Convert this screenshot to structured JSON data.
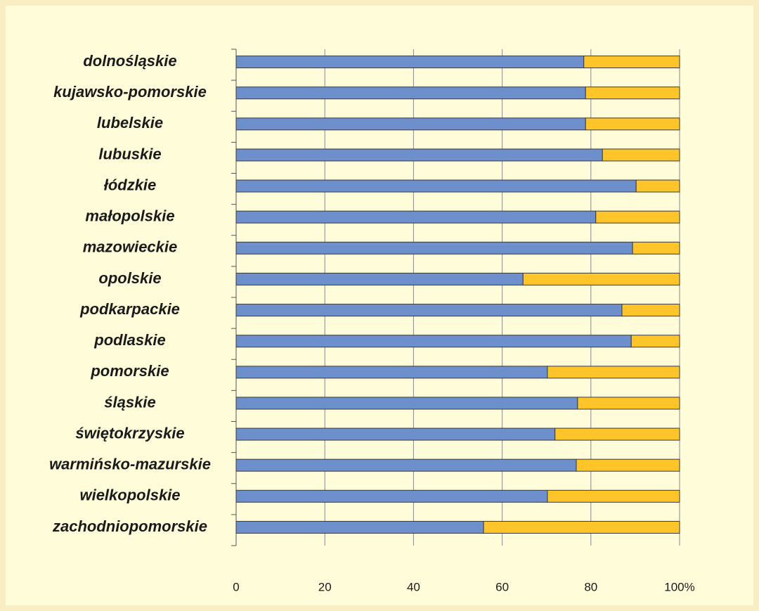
{
  "chart_data": {
    "type": "bar",
    "orientation": "horizontal",
    "stacked": true,
    "categories": [
      "dolnośląskie",
      "kujawsko-pomorskie",
      "lubelskie",
      "lubuskie",
      "łódzkie",
      "małopolskie",
      "mazowieckie",
      "opolskie",
      "podkarpackie",
      "podlaskie",
      "pomorskie",
      "śląskie",
      "świętokrzyskie",
      "warmińsko-mazurskie",
      "wielkopolskie",
      "zachodniopomorskie"
    ],
    "series": [
      {
        "color": "#6d8fcc",
        "values": [
          78.4,
          78.8,
          78.8,
          82.6,
          90.2,
          81.1,
          89.4,
          64.7,
          87.0,
          89.1,
          70.2,
          77.0,
          71.9,
          76.7,
          70.2,
          55.8
        ]
      },
      {
        "color": "#fdc52a",
        "values": [
          21.6,
          21.2,
          21.2,
          17.4,
          9.8,
          18.9,
          10.6,
          35.3,
          13.0,
          10.9,
          29.8,
          23.0,
          28.1,
          23.3,
          29.8,
          44.2
        ]
      }
    ],
    "xlim": [
      0,
      100
    ],
    "xticks": [
      0,
      20,
      40,
      60,
      80,
      {
        "value": 100,
        "label": "100%"
      }
    ],
    "grid": true
  }
}
